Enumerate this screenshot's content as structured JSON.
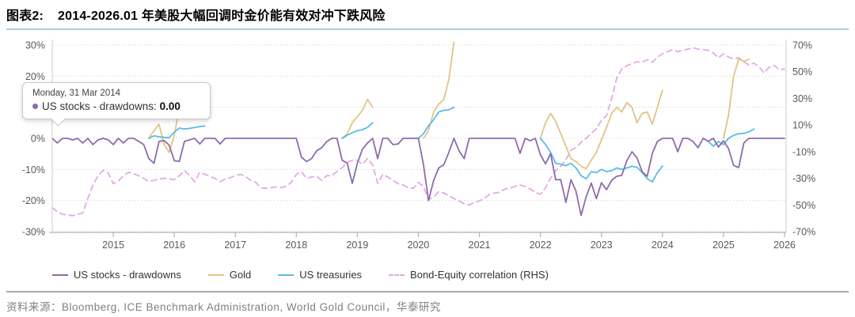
{
  "header": {
    "tag": "图表2:",
    "title": "2014-2026.01 年美股大幅回调时金价能有效对冲下跌风险"
  },
  "tooltip": {
    "date": "Monday, 31 Mar 2014",
    "series_label": "US stocks - drawdowns:",
    "value": "0.00"
  },
  "source": "资料来源：Bloomberg, ICE Benchmark Administration, World Gold Council，华泰研究",
  "colors": {
    "us_stocks": "#8d6cab",
    "gold": "#e3c383",
    "us_treasuries": "#56bdea",
    "correlation": "#e2abe2",
    "grid": "#d9d9d9",
    "axis": "#b3b3b3",
    "tick_text": "#595959"
  },
  "chart_data": {
    "type": "line",
    "title": "2014-2026.01 年美股大幅回调时金价能有效对冲下跌风险",
    "x_start_year": 2014,
    "x_months_step": 1,
    "x_tick_years": [
      2015,
      2016,
      2017,
      2018,
      2019,
      2020,
      2021,
      2022,
      2023,
      2024,
      2025,
      2026
    ],
    "y_left": {
      "min": -30,
      "max": 30,
      "tick_values": [
        30,
        20,
        10,
        0,
        -10,
        -20,
        -30
      ],
      "tick_labels": [
        "30%",
        "20%",
        "10%",
        "0%",
        "-10%",
        "-20%",
        "-30%"
      ]
    },
    "y_right": {
      "min": -70,
      "max": 70,
      "tick_values": [
        70,
        50,
        30,
        10,
        -10,
        -30,
        -50,
        -70
      ],
      "tick_labels": [
        "70%",
        "50%",
        "30%",
        "10%",
        "-10%",
        "-30%",
        "-50%",
        "-70%"
      ]
    },
    "grid": "dotted-horizontal",
    "legend_position": "bottom",
    "series": [
      {
        "name": "US stocks - drawdowns",
        "axis": "left",
        "style": "solid",
        "color": "#8d6cab",
        "values": [
          0,
          -1.5,
          0,
          0,
          -0.5,
          0,
          -1.5,
          0,
          -2,
          -0.5,
          0,
          -0.5,
          -2,
          0,
          -1.5,
          0,
          0,
          -1,
          -2,
          -6.5,
          -8,
          -1,
          -0.7,
          -2.2,
          -7.2,
          -7.4,
          -1,
          -0.5,
          0,
          -1.8,
          0,
          0,
          0,
          -1.8,
          0,
          0,
          0,
          0,
          0,
          0,
          0,
          0,
          0,
          0,
          0,
          0,
          0,
          0,
          0,
          -6,
          -7.5,
          -6.5,
          -4,
          -3,
          -1,
          0,
          0,
          -7,
          -8,
          -14.5,
          -8,
          -3.5,
          -1.5,
          0,
          -6.5,
          0,
          0,
          -2,
          -1.8,
          0,
          0,
          0,
          0,
          -8.5,
          -20,
          -13.5,
          -9.5,
          -8.5,
          -4.5,
          0,
          -4,
          -6.5,
          0,
          0,
          0,
          0,
          0,
          0,
          0,
          0,
          0,
          0,
          -4.8,
          0,
          -0.8,
          0,
          -5.3,
          -8.2,
          -4.9,
          -13.3,
          -13.3,
          -20.6,
          -13.3,
          -17,
          -24.8,
          -18.8,
          -14.4,
          -19.4,
          -14.3,
          -16.5,
          -13.5,
          -12.2,
          -11.9,
          -7.2,
          -4.3,
          -6.3,
          -10.7,
          -12.2,
          -4.8,
          -1,
          0,
          0,
          0,
          -4.3,
          0,
          0,
          -1,
          -3,
          0,
          -1,
          0,
          -2.8,
          -0.8,
          -3.3,
          -8.7,
          -9.4,
          -1.5,
          0,
          0,
          0,
          0,
          0,
          0,
          0,
          0
        ]
      },
      {
        "name": "Gold",
        "axis": "left",
        "style": "solid",
        "color": "#e3c383",
        "values": [
          null,
          null,
          null,
          null,
          null,
          null,
          null,
          null,
          null,
          null,
          null,
          null,
          null,
          null,
          null,
          null,
          null,
          null,
          null,
          0,
          2.5,
          4.5,
          -2,
          -4.5,
          1,
          10,
          13,
          8,
          12,
          17.5,
          10.5,
          null,
          null,
          null,
          null,
          null,
          null,
          null,
          null,
          null,
          null,
          null,
          null,
          null,
          null,
          null,
          null,
          null,
          null,
          null,
          null,
          null,
          null,
          null,
          null,
          null,
          null,
          0,
          1.5,
          5,
          7,
          9,
          12.5,
          10,
          null,
          null,
          null,
          null,
          null,
          null,
          null,
          null,
          null,
          0,
          2.5,
          8.5,
          11,
          12.5,
          19,
          31,
          null,
          null,
          null,
          null,
          null,
          null,
          null,
          null,
          null,
          null,
          null,
          null,
          null,
          null,
          null,
          null,
          0,
          5,
          8,
          5.5,
          1.5,
          -2.5,
          -6.5,
          -7.5,
          -9,
          -9.7,
          -7,
          -4.5,
          -0.5,
          3.5,
          8,
          10,
          8.5,
          11.5,
          10,
          5,
          8,
          8.5,
          4.5,
          10,
          15.5,
          null,
          null,
          null,
          null,
          null,
          null,
          null,
          null,
          null,
          null,
          null,
          0,
          7.5,
          20,
          25.5,
          24.8,
          25.4,
          null,
          null,
          null,
          null,
          null,
          null,
          null
        ]
      },
      {
        "name": "US treasuries",
        "axis": "left",
        "style": "solid",
        "color": "#56bdea",
        "values": [
          null,
          null,
          null,
          null,
          null,
          null,
          null,
          null,
          null,
          null,
          null,
          null,
          null,
          null,
          null,
          null,
          null,
          null,
          null,
          0,
          0.8,
          0.5,
          0.3,
          0.2,
          2,
          3.3,
          3,
          3.2,
          3.5,
          3.8,
          4,
          null,
          null,
          null,
          null,
          null,
          null,
          null,
          null,
          null,
          null,
          null,
          null,
          null,
          null,
          null,
          null,
          null,
          null,
          null,
          null,
          null,
          null,
          null,
          null,
          null,
          null,
          0,
          1,
          1.8,
          2.5,
          2.8,
          3.5,
          5,
          null,
          null,
          null,
          null,
          null,
          null,
          null,
          null,
          0,
          1.5,
          4,
          6,
          8.5,
          9,
          9.2,
          10,
          null,
          null,
          null,
          null,
          null,
          null,
          null,
          null,
          null,
          null,
          null,
          null,
          null,
          null,
          null,
          null,
          0,
          -2,
          -4.5,
          -8,
          -8.3,
          -8.8,
          -8,
          -9.5,
          -12,
          -13,
          -10.7,
          -11,
          -10,
          -10.7,
          -10.4,
          -9.5,
          -10,
          -9.5,
          -9,
          -9.3,
          -11,
          -13,
          -14,
          -11,
          -8.9,
          null,
          null,
          null,
          null,
          null,
          null,
          null,
          0,
          -1,
          -2.5,
          -1,
          -2,
          0,
          1,
          1.5,
          1.6,
          2.1,
          3,
          null,
          null,
          null,
          null,
          null,
          null
        ]
      },
      {
        "name": "Bond-Equity correlation (RHS)",
        "axis": "right",
        "style": "dashed",
        "color": "#e2abe2",
        "values": [
          -52,
          -55,
          -57,
          -57.5,
          -58,
          -57,
          -56,
          -45,
          -35,
          -28,
          -24,
          -26,
          -34,
          -32,
          -28,
          -25.5,
          -26.5,
          -28,
          -30,
          -32.5,
          -31.5,
          -30.5,
          -30,
          -30.5,
          -31,
          -28,
          -24,
          -28,
          -32.5,
          -25.5,
          -27,
          -28.5,
          -30,
          -32.5,
          -30.5,
          -29.5,
          -28,
          -27,
          -28.5,
          -31.5,
          -33,
          -37,
          -37.5,
          -37,
          -36.5,
          -37,
          -36,
          -33,
          -27,
          -25,
          -30,
          -29,
          -28.5,
          -31.5,
          -28,
          -28,
          -25,
          -22,
          -18,
          -16.5,
          -16.5,
          -19.5,
          -15,
          -20,
          -34,
          -27,
          -29,
          -31.5,
          -34,
          -35,
          -37,
          -37.5,
          -33,
          -36,
          -46,
          -44,
          -40,
          -41,
          -43,
          -45,
          -47,
          -49,
          -50,
          -48,
          -47,
          -45,
          -42,
          -41,
          -40.5,
          -38,
          -37.5,
          -36,
          -35,
          -36,
          -38,
          -40.5,
          -42,
          -37,
          -30,
          -24,
          -21,
          -16,
          -9,
          -7,
          -3,
          0,
          4,
          7,
          13.5,
          17,
          30,
          45,
          52,
          54.5,
          56,
          57.5,
          57,
          59,
          57,
          61,
          63.5,
          65,
          66.5,
          65,
          66,
          67,
          68,
          67,
          66.5,
          66,
          64,
          60.5,
          63.5,
          61,
          59.5,
          60.5,
          57.5,
          55,
          56.5,
          53.5,
          49,
          53.5,
          54.5,
          51.5,
          52
        ]
      }
    ]
  }
}
